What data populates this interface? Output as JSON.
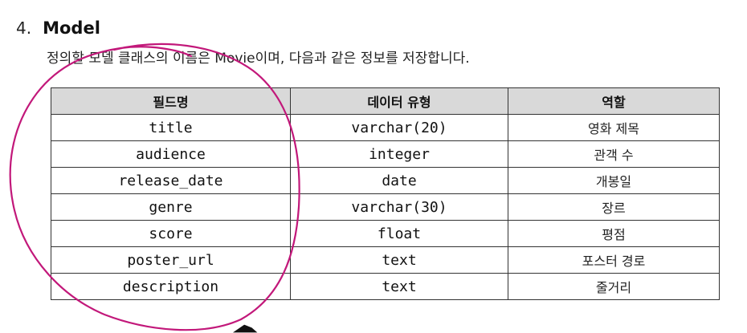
{
  "heading": {
    "number": "4.",
    "title": "Model"
  },
  "intro": "정의할 모델 클래스의 이름은 Movie이며, 다음과 같은 정보를 저장합니다.",
  "table": {
    "headers": [
      "필드명",
      "데이터 유형",
      "역할"
    ],
    "rows": [
      [
        "title",
        "varchar(20)",
        "영화 제목"
      ],
      [
        "audience",
        "integer",
        "관객 수"
      ],
      [
        "release_date",
        "date",
        "개봉일"
      ],
      [
        "genre",
        "varchar(30)",
        "장르"
      ],
      [
        "score",
        "float",
        "평점"
      ],
      [
        "poster_url",
        "text",
        "포스터 경로"
      ],
      [
        "description",
        "text",
        "줄거리"
      ]
    ]
  },
  "colors": {
    "header_background": "#d9d9d9",
    "border": "#333333",
    "annotation_stroke": "#c2187a"
  },
  "annotation": {
    "shape": "hand-drawn-ellipse",
    "cursor_icon": "mouse-pointer-icon"
  }
}
